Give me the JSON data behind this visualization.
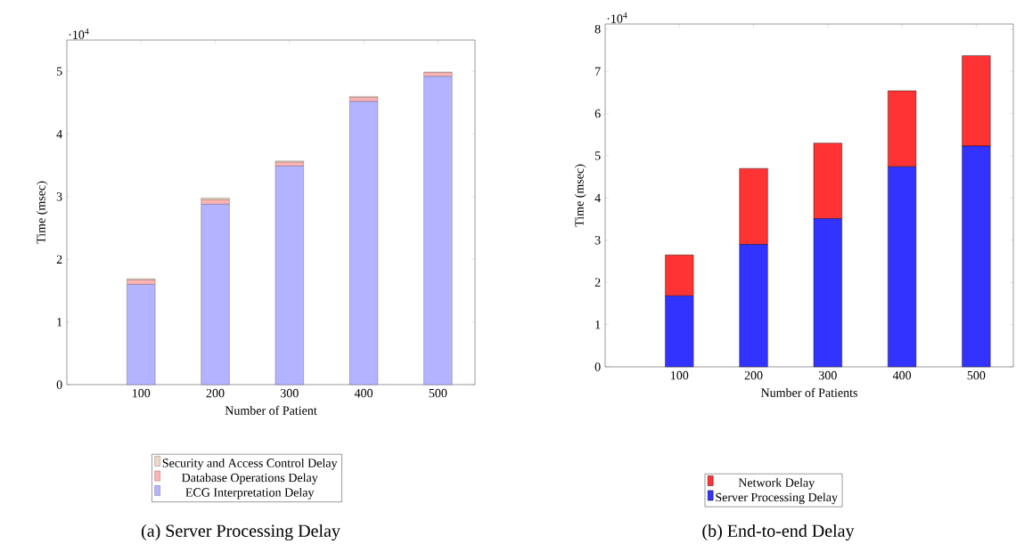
{
  "chart_data": [
    {
      "type": "bar",
      "stacked": true,
      "title": "(a) Server Processing Delay",
      "xlabel": "Number of Patient",
      "ylabel": "Time (msec)",
      "annotations": [
        "·10$^{4}$"
      ],
      "x": [
        100,
        200,
        300,
        400,
        500
      ],
      "xlim": [
        0,
        550
      ],
      "xticks": [
        100,
        200,
        300,
        400,
        500
      ],
      "ylim": [
        0,
        5.5
      ],
      "yticks": [
        0,
        1,
        2,
        3,
        4,
        5
      ],
      "legend": "bottom",
      "series": [
        {
          "name": "ECG Interpretation Delay",
          "color": "#b3b3ff",
          "values": [
            1.6,
            2.88,
            3.49,
            4.52,
            4.92
          ]
        },
        {
          "name": "Database Operations Delay",
          "color": "#ffb3b3",
          "values": [
            0.07,
            0.07,
            0.06,
            0.06,
            0.06
          ]
        },
        {
          "name": "Security and Access Control Delay",
          "color": "#ecd9c6",
          "values": [
            0.02,
            0.03,
            0.02,
            0.02,
            0.01
          ]
        }
      ]
    },
    {
      "type": "bar",
      "stacked": true,
      "title": "(b) End-to-end Delay",
      "xlabel": "Number of Patients",
      "ylabel": "Time (msec)",
      "annotations": [
        "·10$^{4}$"
      ],
      "x": [
        100,
        200,
        300,
        400,
        500
      ],
      "xlim": [
        0,
        550
      ],
      "xticks": [
        100,
        200,
        300,
        400,
        500
      ],
      "ylim": [
        0,
        8.12
      ],
      "yticks": [
        0,
        1,
        2,
        3,
        4,
        5,
        6,
        7,
        8
      ],
      "legend": "bottom",
      "series": [
        {
          "name": "Server Processing Delay",
          "color": "#3333ff",
          "values": [
            1.68,
            2.9,
            3.51,
            4.74,
            5.23
          ]
        },
        {
          "name": "Network Delay",
          "color": "#ff3333",
          "values": [
            0.97,
            1.8,
            1.79,
            1.8,
            2.14
          ]
        }
      ]
    }
  ]
}
